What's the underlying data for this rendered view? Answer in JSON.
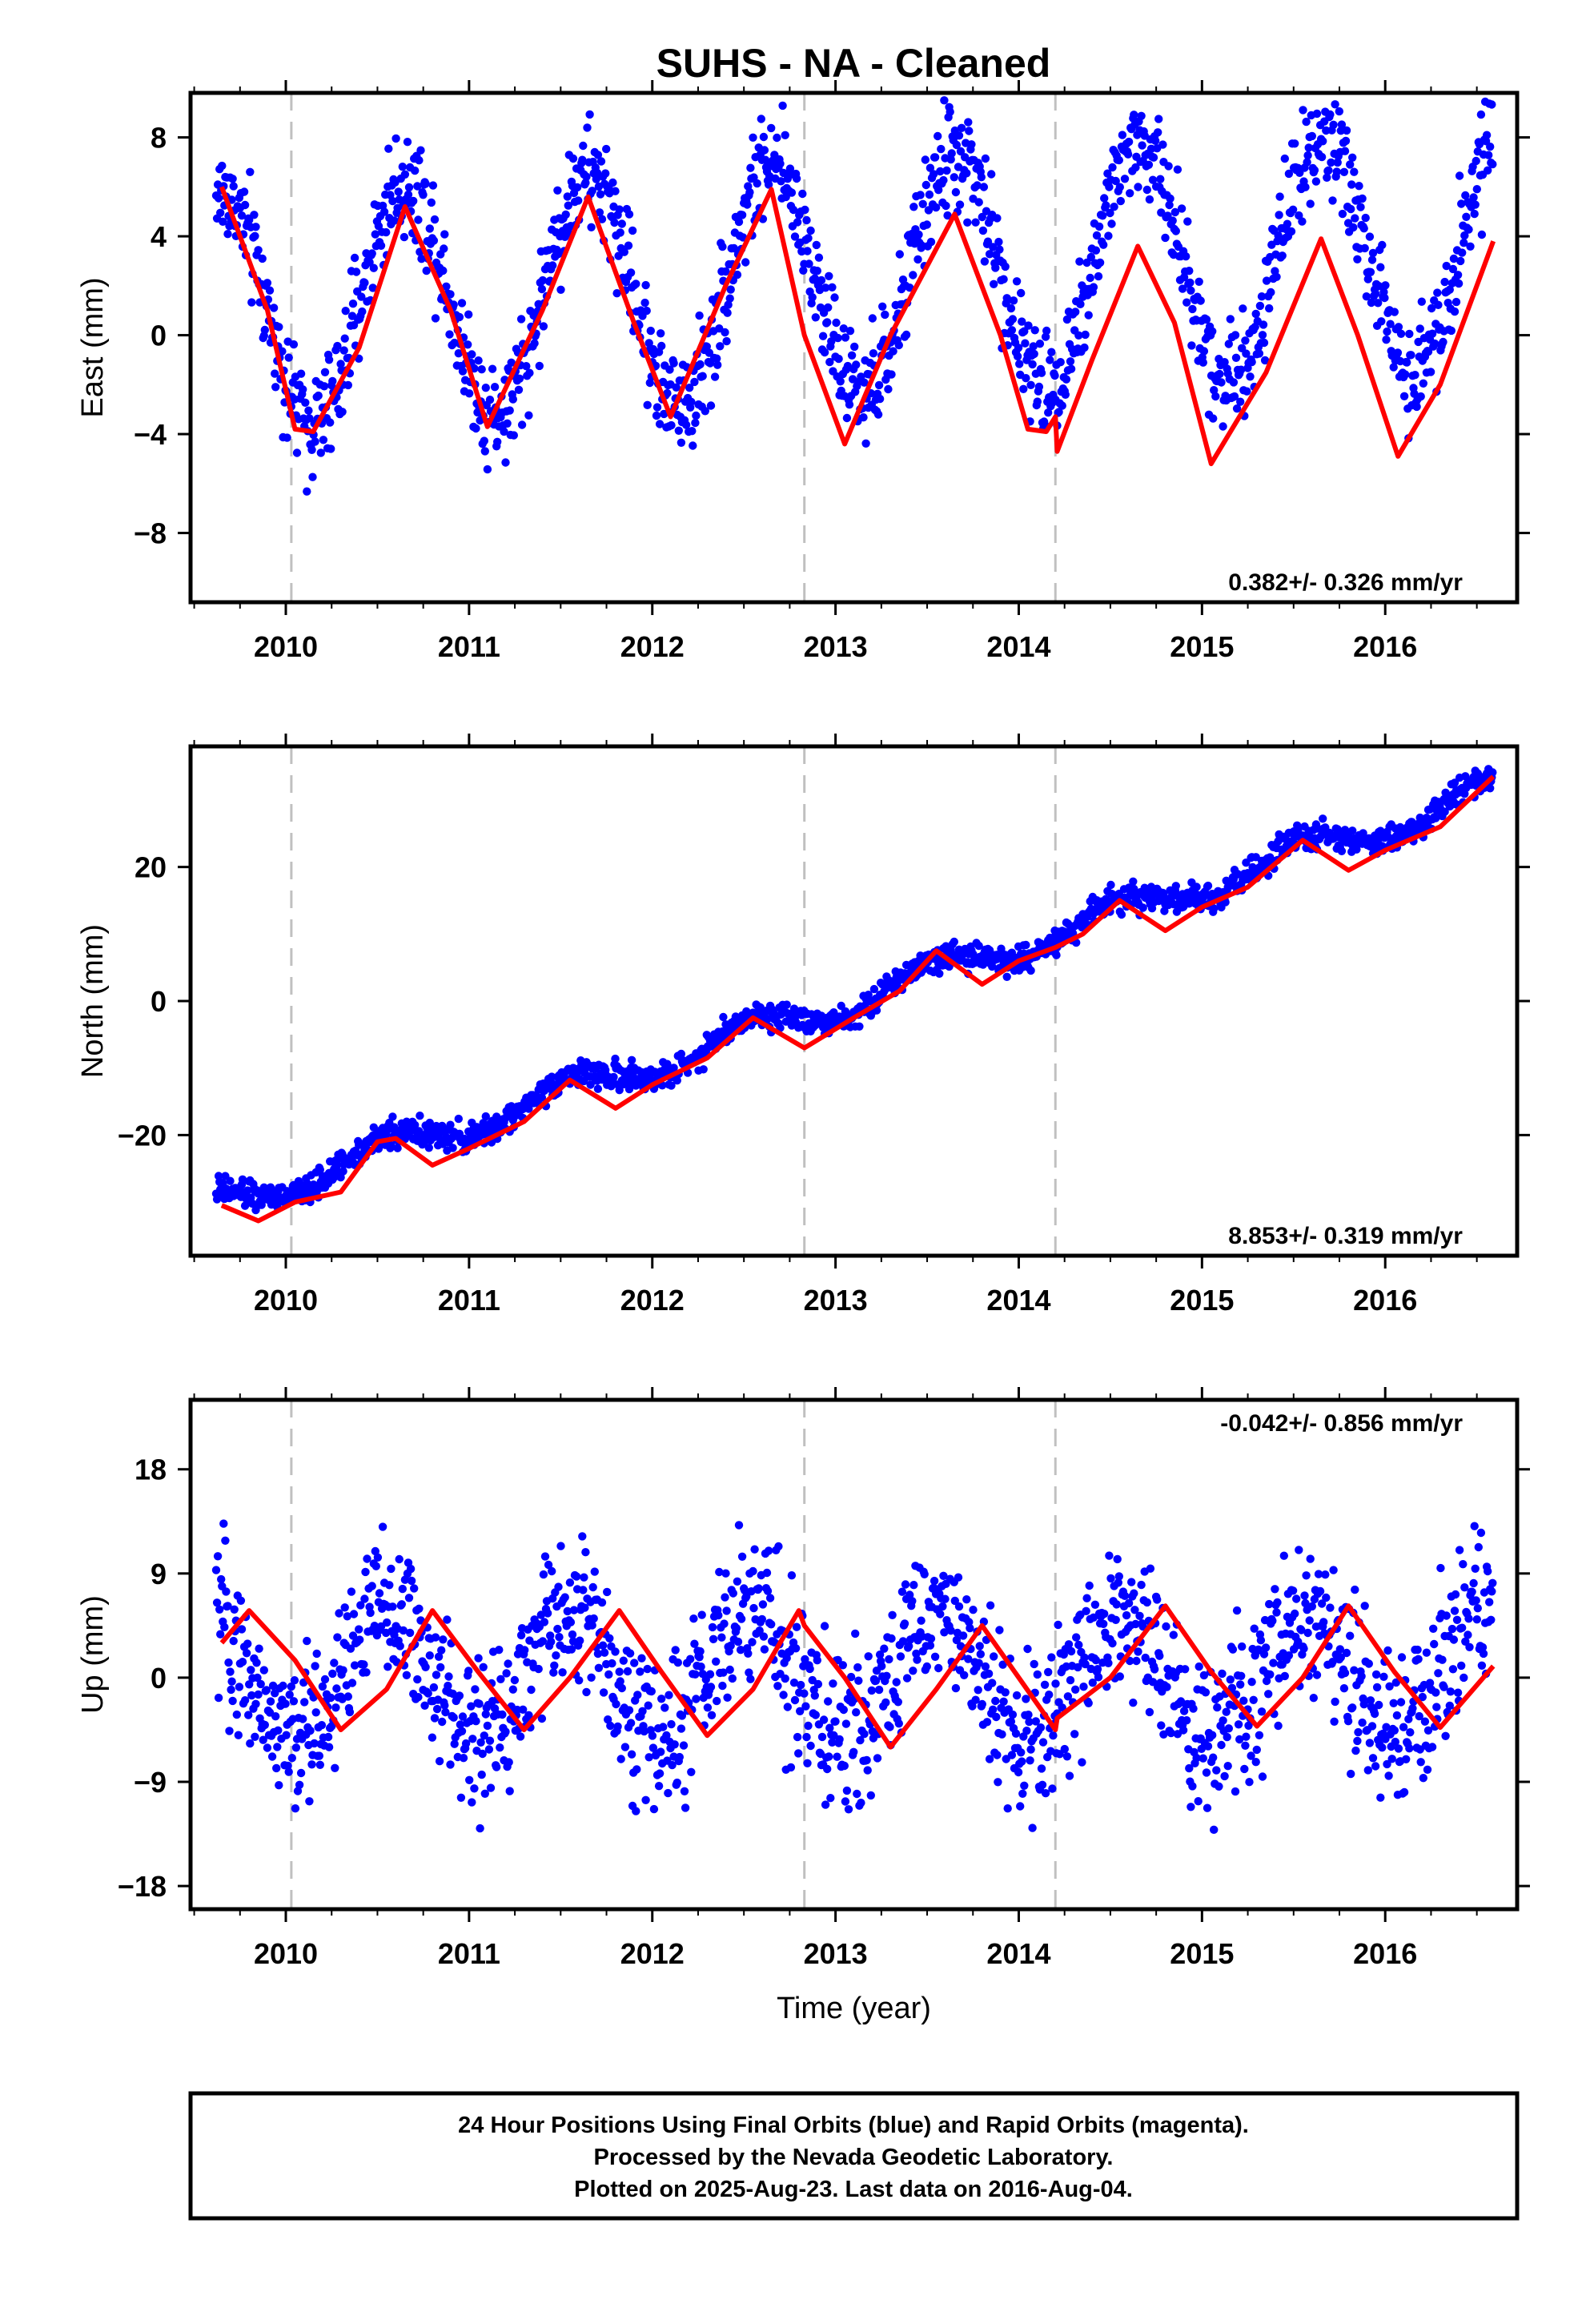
{
  "title": "SUHS  - NA - Cleaned",
  "colors": {
    "points": "#0000ff",
    "fit": "#ff0000",
    "events": "#c0c0c0",
    "frame": "#000000"
  },
  "chart_data": [
    {
      "type": "scatter",
      "ylabel": "East (mm)",
      "xlabel": "",
      "rate_label": "0.382+/- 0.326 mm/yr",
      "xlim": [
        2009.48,
        2016.72
      ],
      "ylim": [
        -10.8,
        9.8
      ],
      "xticks": [
        2010,
        2011,
        2012,
        2013,
        2014,
        2015,
        2016
      ],
      "xtick_labels": [
        "2010",
        "2011",
        "2012",
        "2013",
        "2014",
        "2015",
        "2016"
      ],
      "yticks": [
        8,
        4,
        0,
        -4,
        -8
      ],
      "ytick_labels": [
        "8",
        "4",
        "0",
        "−4",
        "−8"
      ],
      "event_lines": [
        2010.03,
        2012.83,
        2014.2
      ],
      "model": {
        "offset": 0.95,
        "trend": 0.382,
        "amp": 4.75,
        "phase_year": 2009.65,
        "noise": 1.1
      },
      "fit": [
        [
          2009.65,
          6.0
        ],
        [
          2009.9,
          1.0
        ],
        [
          2010.05,
          -3.8
        ],
        [
          2010.15,
          -3.9
        ],
        [
          2010.4,
          -0.5
        ],
        [
          2010.65,
          5.2
        ],
        [
          2010.9,
          1.0
        ],
        [
          2011.1,
          -3.7
        ],
        [
          2011.4,
          1.0
        ],
        [
          2011.65,
          5.6
        ],
        [
          2011.9,
          0.5
        ],
        [
          2012.1,
          -3.3
        ],
        [
          2012.4,
          2.0
        ],
        [
          2012.65,
          5.9
        ],
        [
          2012.83,
          0.0
        ],
        [
          2013.05,
          -4.4
        ],
        [
          2013.3,
          0.0
        ],
        [
          2013.65,
          4.9
        ],
        [
          2013.9,
          0.0
        ],
        [
          2014.05,
          -3.8
        ],
        [
          2014.15,
          -3.9
        ],
        [
          2014.2,
          -3.3
        ],
        [
          2014.21,
          -4.7
        ],
        [
          2014.4,
          -1.0
        ],
        [
          2014.65,
          3.6
        ],
        [
          2014.85,
          0.5
        ],
        [
          2015.05,
          -5.2
        ],
        [
          2015.35,
          -1.5
        ],
        [
          2015.65,
          3.9
        ],
        [
          2015.85,
          0.0
        ],
        [
          2016.07,
          -4.9
        ],
        [
          2016.3,
          -2.0
        ],
        [
          2016.59,
          3.8
        ]
      ]
    },
    {
      "type": "scatter",
      "ylabel": "North (mm)",
      "xlabel": "",
      "rate_label": "8.853+/- 0.319 mm/yr",
      "xlim": [
        2009.48,
        2016.72
      ],
      "ylim": [
        -38,
        38
      ],
      "xticks": [
        2010,
        2011,
        2012,
        2013,
        2014,
        2015,
        2016
      ],
      "xtick_labels": [
        "2010",
        "2011",
        "2012",
        "2013",
        "2014",
        "2015",
        "2016"
      ],
      "yticks": [
        20,
        0,
        -20
      ],
      "ytick_labels": [
        "20",
        "0",
        "−20"
      ],
      "event_lines": [
        2010.03,
        2012.83,
        2014.2
      ],
      "model": {
        "offset": -30.5,
        "trend": 8.853,
        "amp": 2.2,
        "phase_year": 2009.55,
        "noise": 1.0
      },
      "fit": [
        [
          2009.65,
          -30.5
        ],
        [
          2009.85,
          -32.8
        ],
        [
          2010.05,
          -30.0
        ],
        [
          2010.3,
          -28.5
        ],
        [
          2010.5,
          -21.0
        ],
        [
          2010.6,
          -20.5
        ],
        [
          2010.8,
          -24.5
        ],
        [
          2011.0,
          -22.0
        ],
        [
          2011.3,
          -18.0
        ],
        [
          2011.55,
          -11.8
        ],
        [
          2011.8,
          -16.0
        ],
        [
          2012.0,
          -12.5
        ],
        [
          2012.3,
          -8.5
        ],
        [
          2012.55,
          -2.5
        ],
        [
          2012.83,
          -7.0
        ],
        [
          2013.1,
          -2.5
        ],
        [
          2013.35,
          1.5
        ],
        [
          2013.55,
          7.5
        ],
        [
          2013.8,
          2.5
        ],
        [
          2014.0,
          6.0
        ],
        [
          2014.2,
          8.0
        ],
        [
          2014.35,
          10.0
        ],
        [
          2014.55,
          15.0
        ],
        [
          2014.8,
          10.5
        ],
        [
          2015.0,
          14.0
        ],
        [
          2015.25,
          17.0
        ],
        [
          2015.55,
          24.0
        ],
        [
          2015.8,
          19.5
        ],
        [
          2016.0,
          22.5
        ],
        [
          2016.3,
          26.0
        ],
        [
          2016.59,
          33.5
        ]
      ]
    },
    {
      "type": "scatter",
      "ylabel": "Up (mm)",
      "xlabel": "Time (year)",
      "rate_label": "-0.042+/- 0.856 mm/yr",
      "xlim": [
        2009.48,
        2016.72
      ],
      "ylim": [
        -20,
        24
      ],
      "xticks": [
        2010,
        2011,
        2012,
        2013,
        2014,
        2015,
        2016
      ],
      "xtick_labels": [
        "2010",
        "2011",
        "2012",
        "2013",
        "2014",
        "2015",
        "2016"
      ],
      "yticks": [
        18,
        9,
        0,
        -9,
        -18
      ],
      "ytick_labels": [
        "18",
        "9",
        "0",
        "−9",
        "−18"
      ],
      "event_lines": [
        2010.03,
        2012.83,
        2014.2
      ],
      "model": {
        "offset": 0.3,
        "trend": -0.042,
        "amp": 5.5,
        "phase_year": 2009.55,
        "noise": 3.3
      },
      "fit": [
        [
          2009.65,
          3.0
        ],
        [
          2009.8,
          5.8
        ],
        [
          2010.05,
          1.5
        ],
        [
          2010.3,
          -4.5
        ],
        [
          2010.55,
          -1.0
        ],
        [
          2010.8,
          5.8
        ],
        [
          2011.05,
          0.5
        ],
        [
          2011.3,
          -4.5
        ],
        [
          2011.55,
          0.0
        ],
        [
          2011.82,
          5.8
        ],
        [
          2012.05,
          0.5
        ],
        [
          2012.3,
          -5.0
        ],
        [
          2012.55,
          -1.0
        ],
        [
          2012.8,
          5.8
        ],
        [
          2012.83,
          4.5
        ],
        [
          2013.05,
          0.0
        ],
        [
          2013.3,
          -6.0
        ],
        [
          2013.55,
          -1.0
        ],
        [
          2013.8,
          4.5
        ],
        [
          2014.0,
          0.0
        ],
        [
          2014.2,
          -4.5
        ],
        [
          2014.21,
          -3.5
        ],
        [
          2014.5,
          0.0
        ],
        [
          2014.8,
          6.2
        ],
        [
          2015.05,
          0.5
        ],
        [
          2015.3,
          -4.2
        ],
        [
          2015.55,
          0.0
        ],
        [
          2015.8,
          6.2
        ],
        [
          2016.05,
          0.5
        ],
        [
          2016.3,
          -4.3
        ],
        [
          2016.59,
          1.0
        ]
      ]
    }
  ],
  "footer": {
    "line1": "24 Hour Positions Using Final Orbits (blue) and Rapid Orbits (magenta).",
    "line2": "Processed by the Nevada Geodetic Laboratory.",
    "line3": "Plotted on 2025-Aug-23. Last data on 2016-Aug-04."
  }
}
